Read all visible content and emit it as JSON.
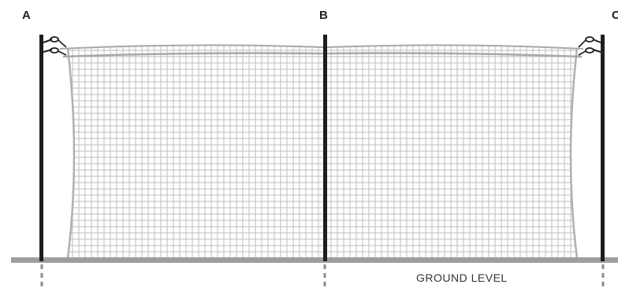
{
  "posts": [
    {
      "id": "post-a",
      "label": "A"
    },
    {
      "id": "post-b",
      "label": "B"
    },
    {
      "id": "post-c",
      "label": "C"
    }
  ],
  "ground": {
    "label": "GROUND LEVEL"
  },
  "colors": {
    "post": "#1e1e1e",
    "netting": "#bdbdbd",
    "ground": "#9e9e9e",
    "ground_marker": "#8c8c8c",
    "label": "#222222"
  }
}
